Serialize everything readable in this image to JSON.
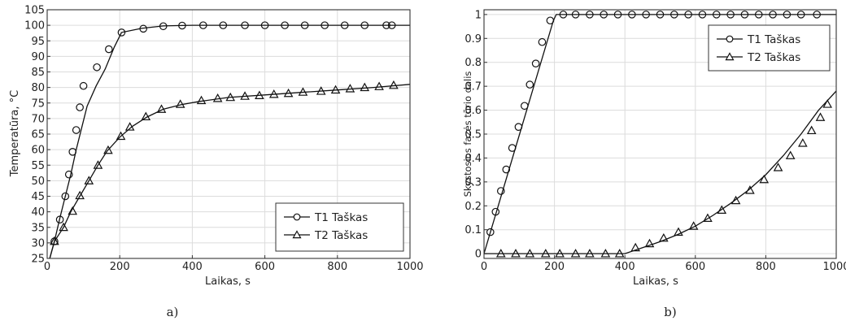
{
  "chart_data": [
    {
      "type": "line",
      "caption": "a)",
      "xlabel": "Laikas, s",
      "ylabel": "Temperatūra, °C",
      "xlim": [
        0,
        1000
      ],
      "ylim": [
        25,
        105
      ],
      "xticks": [
        0,
        200,
        400,
        600,
        800,
        1000
      ],
      "yticks": [
        25,
        30,
        35,
        40,
        45,
        50,
        55,
        60,
        65,
        70,
        75,
        80,
        85,
        90,
        95,
        100,
        105
      ],
      "grid": true,
      "legend_position": "bottom-right",
      "series": [
        {
          "name": "T1 Taškas",
          "marker": "circle",
          "line": [
            [
              0,
              22
            ],
            [
              20,
              30.5
            ],
            [
              35,
              38
            ],
            [
              50,
              45
            ],
            [
              65,
              52
            ],
            [
              80,
              60
            ],
            [
              95,
              67
            ],
            [
              110,
              74
            ],
            [
              135,
              80.5
            ],
            [
              160,
              86
            ],
            [
              185,
              93
            ],
            [
              205,
              97.7
            ],
            [
              260,
              99
            ],
            [
              320,
              99.8
            ],
            [
              400,
              100
            ],
            [
              1000,
              100
            ]
          ],
          "markers": [
            [
              20,
              30.5
            ],
            [
              35,
              37.5
            ],
            [
              50,
              45
            ],
            [
              60,
              52
            ],
            [
              70,
              59.3
            ],
            [
              80,
              66.3
            ],
            [
              90,
              73.6
            ],
            [
              100,
              80.5
            ],
            [
              137,
              86.5
            ],
            [
              170,
              92.3
            ],
            [
              205,
              97.7
            ],
            [
              265,
              98.9
            ],
            [
              320,
              99.7
            ],
            [
              372,
              99.9
            ],
            [
              430,
              100
            ],
            [
              485,
              100
            ],
            [
              545,
              100
            ],
            [
              600,
              100
            ],
            [
              655,
              100
            ],
            [
              710,
              100
            ],
            [
              765,
              100
            ],
            [
              820,
              100
            ],
            [
              875,
              100
            ],
            [
              935,
              100
            ],
            [
              950,
              100
            ]
          ]
        },
        {
          "name": "T2 Taškas",
          "marker": "triangle",
          "line": [
            [
              0,
              22
            ],
            [
              20,
              30.5
            ],
            [
              45,
              35
            ],
            [
              65,
              40
            ],
            [
              90,
              45
            ],
            [
              115,
              50
            ],
            [
              140,
              55
            ],
            [
              165,
              59.5
            ],
            [
              200,
              64
            ],
            [
              235,
              67.5
            ],
            [
              275,
              70.5
            ],
            [
              320,
              73
            ],
            [
              370,
              74.5
            ],
            [
              420,
              75.5
            ],
            [
              500,
              76.8
            ],
            [
              600,
              77.6
            ],
            [
              700,
              78.4
            ],
            [
              800,
              79.2
            ],
            [
              900,
              80
            ],
            [
              1000,
              81
            ]
          ],
          "markers": [
            [
              20,
              30.5
            ],
            [
              45,
              35
            ],
            [
              70,
              40.2
            ],
            [
              90,
              45.2
            ],
            [
              115,
              50
            ],
            [
              140,
              55
            ],
            [
              168,
              59.8
            ],
            [
              203,
              64.3
            ],
            [
              228,
              67.3
            ],
            [
              272,
              70.6
            ],
            [
              315,
              73
            ],
            [
              367,
              74.6
            ],
            [
              425,
              75.8
            ],
            [
              470,
              76.5
            ],
            [
              505,
              76.8
            ],
            [
              545,
              77.2
            ],
            [
              585,
              77.4
            ],
            [
              625,
              77.8
            ],
            [
              665,
              78.1
            ],
            [
              705,
              78.5
            ],
            [
              755,
              78.8
            ],
            [
              795,
              79.2
            ],
            [
              835,
              79.6
            ],
            [
              875,
              80
            ],
            [
              915,
              80.3
            ],
            [
              955,
              80.7
            ]
          ]
        }
      ]
    },
    {
      "type": "line",
      "caption": "b)",
      "xlabel": "Laikas, s",
      "ylabel": "Skystosios fazės tūrio dalis",
      "xlim": [
        0,
        1000
      ],
      "ylim": [
        -0.02,
        1.02
      ],
      "xticks": [
        0,
        200,
        400,
        600,
        800,
        1000
      ],
      "yticks": [
        0,
        0.1,
        0.2,
        0.3,
        0.4,
        0.5,
        0.6,
        0.7,
        0.8,
        0.9,
        1
      ],
      "grid": true,
      "legend_position": "top-right",
      "series": [
        {
          "name": "T1 Taškas",
          "marker": "circle",
          "line": [
            [
              0,
              0
            ],
            [
              197,
              0.975
            ],
            [
              205,
              1
            ],
            [
              1000,
              1
            ]
          ],
          "markers": [
            [
              18,
              0.09
            ],
            [
              33,
              0.175
            ],
            [
              48,
              0.262
            ],
            [
              63,
              0.352
            ],
            [
              80,
              0.442
            ],
            [
              98,
              0.53
            ],
            [
              115,
              0.618
            ],
            [
              130,
              0.707
            ],
            [
              147,
              0.795
            ],
            [
              165,
              0.885
            ],
            [
              188,
              0.975
            ],
            [
              225,
              1
            ],
            [
              260,
              1
            ],
            [
              300,
              1
            ],
            [
              340,
              1
            ],
            [
              380,
              1
            ],
            [
              420,
              1
            ],
            [
              460,
              1
            ],
            [
              500,
              1
            ],
            [
              540,
              1
            ],
            [
              580,
              1
            ],
            [
              620,
              1
            ],
            [
              660,
              1
            ],
            [
              700,
              1
            ],
            [
              740,
              1
            ],
            [
              780,
              1
            ],
            [
              820,
              1
            ],
            [
              860,
              1
            ],
            [
              900,
              1
            ],
            [
              945,
              1
            ]
          ]
        },
        {
          "name": "T2 Taškas",
          "marker": "triangle",
          "line": [
            [
              0,
              0
            ],
            [
              400,
              0
            ],
            [
              450,
              0.025
            ],
            [
              500,
              0.05
            ],
            [
              550,
              0.08
            ],
            [
              600,
              0.115
            ],
            [
              650,
              0.16
            ],
            [
              700,
              0.21
            ],
            [
              750,
              0.265
            ],
            [
              800,
              0.33
            ],
            [
              850,
              0.41
            ],
            [
              900,
              0.5
            ],
            [
              950,
              0.6
            ],
            [
              1000,
              0.68
            ]
          ],
          "markers": [
            [
              48,
              0
            ],
            [
              90,
              0
            ],
            [
              130,
              0
            ],
            [
              175,
              0
            ],
            [
              215,
              0
            ],
            [
              260,
              0
            ],
            [
              300,
              0
            ],
            [
              345,
              0
            ],
            [
              385,
              0
            ],
            [
              430,
              0.025
            ],
            [
              470,
              0.042
            ],
            [
              510,
              0.065
            ],
            [
              552,
              0.09
            ],
            [
              595,
              0.115
            ],
            [
              635,
              0.148
            ],
            [
              675,
              0.182
            ],
            [
              715,
              0.222
            ],
            [
              755,
              0.265
            ],
            [
              795,
              0.31
            ],
            [
              835,
              0.36
            ],
            [
              870,
              0.41
            ],
            [
              905,
              0.462
            ],
            [
              930,
              0.515
            ],
            [
              955,
              0.57
            ],
            [
              975,
              0.625
            ]
          ]
        }
      ]
    }
  ]
}
